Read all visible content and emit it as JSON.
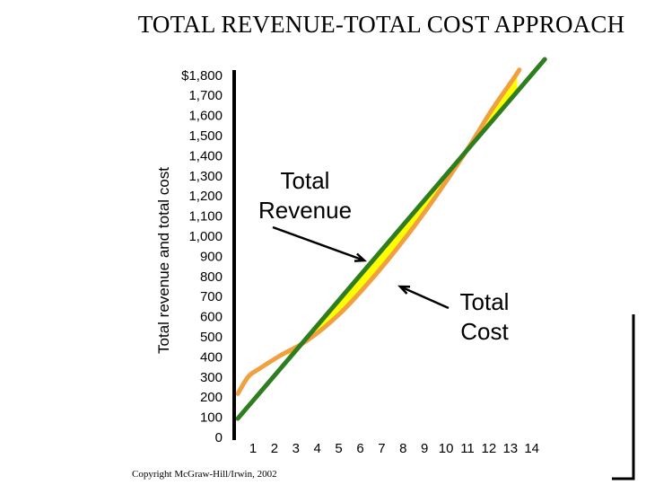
{
  "title": "TOTAL REVENUE-TOTAL COST APPROACH",
  "copyright": "Copyright McGraw-Hill/Irwin, 2002",
  "chart_data": {
    "type": "line",
    "ylabel": "Total revenue and total cost",
    "xlabel": "",
    "x_ticks": [
      "1",
      "2",
      "3",
      "4",
      "5",
      "6",
      "7",
      "8",
      "9",
      "10",
      "11",
      "12",
      "13",
      "14"
    ],
    "y_ticks": [
      "0",
      "100",
      "200",
      "300",
      "400",
      "500",
      "600",
      "700",
      "800",
      "900",
      "1,000",
      "1,100",
      "1,200",
      "1,300",
      "1,400",
      "1,500",
      "1,600",
      "1,700",
      "$1,800"
    ],
    "xlim": [
      0,
      14
    ],
    "ylim": [
      0,
      1800
    ],
    "series": [
      {
        "name": "Total Revenue",
        "color": "#2e7d1e",
        "x": [
          0,
          14.5
        ],
        "y": [
          0,
          1885
        ]
      },
      {
        "name": "Total Cost",
        "color": "#f0a040",
        "x": [
          0,
          0.5,
          1,
          2,
          3,
          4,
          5,
          6,
          7,
          8,
          9,
          10,
          11,
          12,
          13,
          13.3
        ],
        "y": [
          130,
          220,
          260,
          330,
          390,
          470,
          570,
          690,
          820,
          960,
          1110,
          1270,
          1440,
          1620,
          1780,
          1830
        ]
      }
    ],
    "shading": {
      "between": [
        "Total Revenue",
        "Total Cost"
      ],
      "color": "#ffff00",
      "x_range": [
        2.4,
        13.2
      ]
    },
    "annotations": [
      {
        "text_lines": [
          "Total",
          "Revenue"
        ],
        "points_to": "Total Revenue"
      },
      {
        "text_lines": [
          "Total",
          "Cost"
        ],
        "points_to": "Total Cost"
      }
    ],
    "grid": false
  }
}
